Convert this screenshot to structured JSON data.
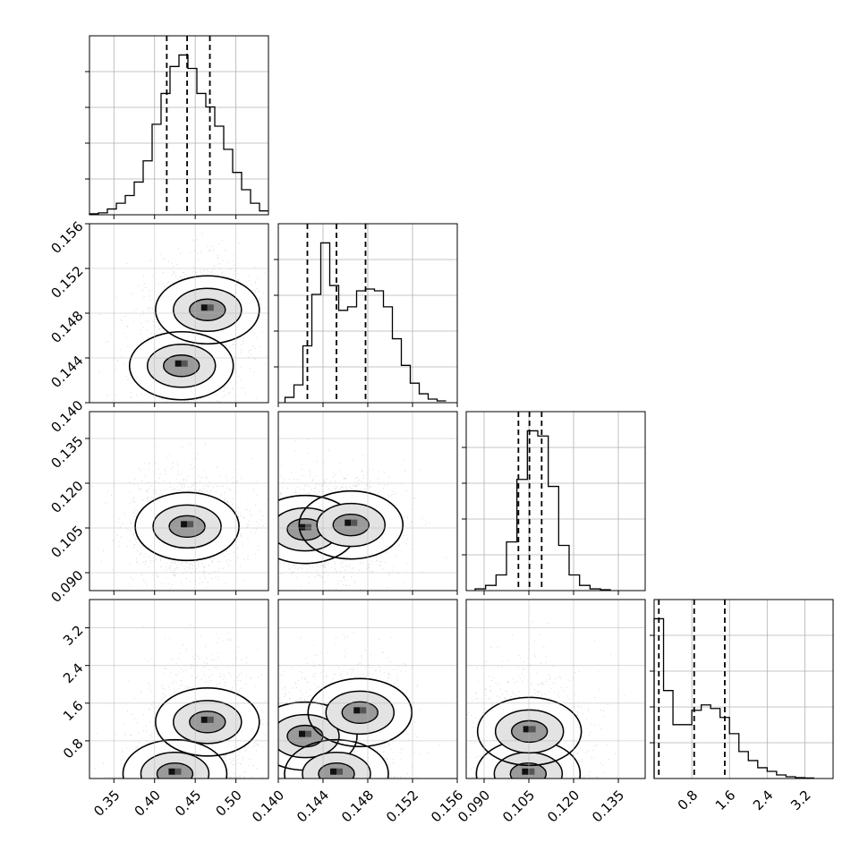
{
  "chart_data": {
    "type": "corner",
    "grid": true,
    "quantile_lines": [
      0.16,
      0.5,
      0.84
    ],
    "parameters": [
      {
        "range": [
          0.32,
          0.54
        ],
        "ticks": [
          "0.35",
          "0.40",
          "0.45",
          "0.50"
        ],
        "tick_values": [
          0.35,
          0.4,
          0.45,
          0.5
        ],
        "quantiles": [
          0.415,
          0.44,
          0.468
        ],
        "hist": {
          "edges_start": 0.32,
          "bin_width": 0.011,
          "values": [
            0.5,
            1,
            3,
            6,
            10,
            17,
            28,
            47,
            63,
            77,
            83,
            76,
            63,
            56,
            46,
            34,
            22,
            13,
            6,
            2
          ]
        }
      },
      {
        "range": [
          0.14,
          0.156
        ],
        "ticks": [
          "0.140",
          "0.144",
          "0.148",
          "0.152",
          "0.156"
        ],
        "tick_values": [
          0.14,
          0.144,
          0.148,
          0.152,
          0.156
        ],
        "quantiles": [
          0.1426,
          0.1452,
          0.1478
        ],
        "hist": {
          "edges_start": 0.1406,
          "bin_width": 0.0008,
          "values": [
            3,
            10,
            32,
            61,
            90,
            66,
            52,
            54,
            63,
            64,
            63,
            54,
            36,
            21,
            11,
            5,
            2,
            1
          ]
        }
      },
      {
        "range": [
          0.084,
          0.144
        ],
        "ticks": [
          "0.090",
          "0.105",
          "0.120",
          "0.135"
        ],
        "tick_values": [
          0.09,
          0.105,
          0.12,
          0.135
        ],
        "quantiles": [
          0.1015,
          0.1052,
          0.1093
        ],
        "hist": {
          "edges_start": 0.087,
          "bin_width": 0.0035,
          "values": [
            1,
            3,
            9,
            28,
            64,
            92,
            89,
            60,
            26,
            9,
            3,
            1,
            0.5
          ]
        }
      },
      {
        "range": [
          0.0,
          3.8
        ],
        "ticks": [
          "0.8",
          "1.6",
          "2.4",
          "3.2"
        ],
        "tick_values": [
          0.8,
          1.6,
          2.4,
          3.2
        ],
        "quantiles": [
          0.1,
          0.85,
          1.5
        ],
        "hist": {
          "edges_start": 0.0,
          "bin_width": 0.2,
          "values": [
            89,
            49,
            30,
            30,
            38,
            41,
            39,
            34,
            25,
            15,
            10,
            6,
            4,
            2,
            1,
            0.5,
            0.3
          ]
        }
      }
    ],
    "joint_modes": [
      {
        "x_param": 0,
        "y_param": 1,
        "modes": [
          [
            0.433,
            0.1433
          ],
          [
            0.465,
            0.1483
          ]
        ]
      },
      {
        "x_param": 0,
        "y_param": 2,
        "modes": [
          [
            0.44,
            0.1055
          ]
        ]
      },
      {
        "x_param": 0,
        "y_param": 3,
        "modes": [
          [
            0.425,
            0.1
          ],
          [
            0.465,
            1.2
          ]
        ]
      },
      {
        "x_param": 1,
        "y_param": 2,
        "modes": [
          [
            0.1424,
            0.1045
          ],
          [
            0.1465,
            0.106
          ]
        ]
      },
      {
        "x_param": 1,
        "y_param": 3,
        "modes": [
          [
            0.1424,
            0.9
          ],
          [
            0.1452,
            0.1
          ],
          [
            0.1473,
            1.4
          ]
        ]
      },
      {
        "x_param": 2,
        "y_param": 3,
        "modes": [
          [
            0.1048,
            0.1
          ],
          [
            0.1052,
            1.0
          ]
        ]
      }
    ]
  }
}
